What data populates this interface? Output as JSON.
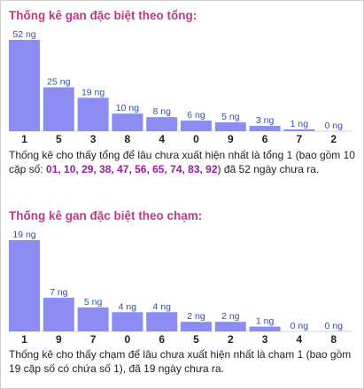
{
  "chart_data": [
    {
      "type": "bar",
      "title": "Thống kê gan đặc biệt theo tổng:",
      "categories": [
        "1",
        "5",
        "3",
        "8",
        "4",
        "0",
        "9",
        "6",
        "7",
        "2"
      ],
      "values": [
        52,
        25,
        19,
        10,
        8,
        6,
        5,
        3,
        1,
        0
      ],
      "labels": [
        "52 ng",
        "25 ng",
        "19 ng",
        "10 ng",
        "8 ng",
        "6 ng",
        "5 ng",
        "3 ng",
        "1 ng",
        "0 ng"
      ],
      "ylim": [
        0,
        52
      ]
    },
    {
      "type": "bar",
      "title": "Thống kê gan đặc biệt theo chạm:",
      "categories": [
        "1",
        "9",
        "7",
        "0",
        "6",
        "5",
        "2",
        "3",
        "4",
        "8"
      ],
      "values": [
        19,
        7,
        5,
        4,
        4,
        2,
        2,
        1,
        0,
        0
      ],
      "labels": [
        "19 ng",
        "7 ng",
        "5 ng",
        "4 ng",
        "4 ng",
        "2 ng",
        "2 ng",
        "1 ng",
        "0 ng",
        "0 ng"
      ],
      "ylim": [
        0,
        19
      ]
    }
  ],
  "descriptions": {
    "tong": {
      "before": "Thống kê cho thấy tổng để lâu chưa xuất hiện nhất là tổng 1 (bao gồm 10 cặp số: ",
      "highlight": "01, 10, 29, 38, 47, 56, 65, 74, 83, 92",
      "after": ") đã 52 ngày chưa ra."
    },
    "cham": {
      "text": "Thống kê cho thấy chạm để lâu chưa xuất hiện nhất là chạm 1 (bao gồm 19 cặp số có chứa số 1), đã 19 ngày chưa ra."
    }
  },
  "colors": {
    "bar": "#8c8cf2",
    "title": "#c0368a",
    "value_label": "#2d4fa8",
    "highlight": "#9a1aa8"
  }
}
